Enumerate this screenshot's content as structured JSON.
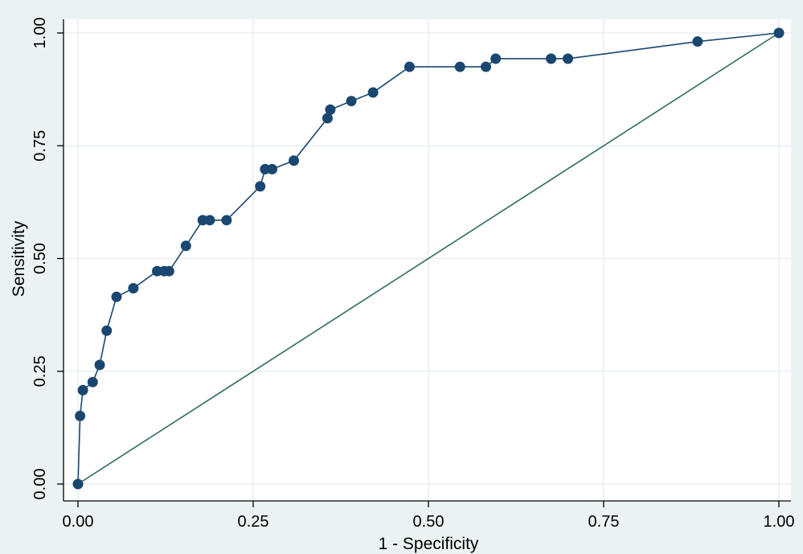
{
  "chart_data": {
    "type": "line",
    "title": "",
    "xlabel": "1 - Specificity",
    "ylabel": "Sensitivity",
    "xlim": [
      0,
      1
    ],
    "ylim": [
      0,
      1
    ],
    "x_ticks": [
      {
        "value": 0,
        "label": "0.00"
      },
      {
        "value": 0.25,
        "label": "0.25"
      },
      {
        "value": 0.5,
        "label": "0.50"
      },
      {
        "value": 0.75,
        "label": "0.75"
      },
      {
        "value": 1,
        "label": "1.00"
      }
    ],
    "y_ticks": [
      {
        "value": 0,
        "label": "0.00"
      },
      {
        "value": 0.25,
        "label": "0.25"
      },
      {
        "value": 0.5,
        "label": "0.50"
      },
      {
        "value": 0.75,
        "label": "0.75"
      },
      {
        "value": 1,
        "label": "1.00"
      }
    ],
    "grid": true,
    "legend": "none",
    "colors": {
      "background": "#eaf2f3",
      "plot_background": "#ffffff",
      "grid": "#e3ecee",
      "curve": "#1a476f",
      "reference": "#2d6b5f"
    },
    "series": [
      {
        "x": [
          0.0,
          0.003,
          0.007,
          0.021,
          0.031,
          0.041,
          0.055,
          0.079,
          0.113,
          0.123,
          0.13,
          0.154,
          0.178,
          0.188,
          0.212,
          0.26,
          0.267,
          0.277,
          0.308,
          0.356,
          0.36,
          0.39,
          0.421,
          0.473,
          0.545,
          0.582,
          0.596,
          0.675,
          0.699,
          0.884,
          1.0
        ],
        "y": [
          0.0,
          0.151,
          0.208,
          0.226,
          0.264,
          0.34,
          0.415,
          0.434,
          0.472,
          0.472,
          0.472,
          0.528,
          0.585,
          0.585,
          0.585,
          0.66,
          0.698,
          0.698,
          0.717,
          0.811,
          0.83,
          0.849,
          0.868,
          0.925,
          0.925,
          0.925,
          0.943,
          0.943,
          0.943,
          0.981,
          1.0
        ]
      },
      {
        "x": [
          0,
          1
        ],
        "y": [
          0,
          1
        ]
      }
    ]
  }
}
